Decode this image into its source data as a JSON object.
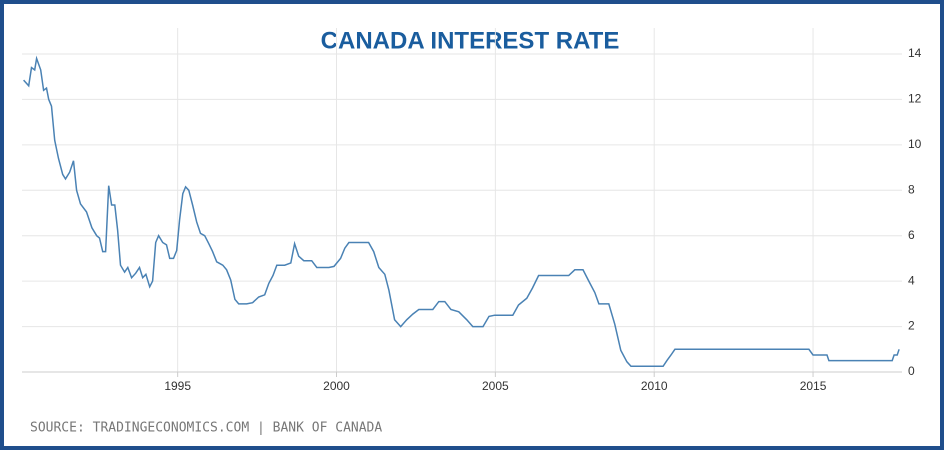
{
  "chart_data": {
    "type": "line",
    "title": "CANADA INTEREST RATE",
    "source": "SOURCE: TRADINGECONOMICS.COM | BANK OF CANADA",
    "x": [
      1990.15,
      1990.31,
      1990.4,
      1990.5,
      1990.56,
      1990.69,
      1990.78,
      1990.87,
      1990.94,
      1991.03,
      1991.13,
      1991.25,
      1991.38,
      1991.47,
      1991.6,
      1991.72,
      1991.82,
      1991.94,
      1992.13,
      1992.3,
      1992.45,
      1992.54,
      1992.64,
      1992.73,
      1992.83,
      1992.92,
      1993.02,
      1993.11,
      1993.2,
      1993.33,
      1993.43,
      1993.55,
      1993.68,
      1993.8,
      1993.9,
      1994.0,
      1994.12,
      1994.21,
      1994.31,
      1994.4,
      1994.53,
      1994.65,
      1994.75,
      1994.87,
      1994.97,
      1995.06,
      1995.16,
      1995.25,
      1995.35,
      1995.47,
      1995.6,
      1995.72,
      1995.85,
      1995.98,
      1996.1,
      1996.23,
      1996.42,
      1996.54,
      1996.67,
      1996.8,
      1996.92,
      1997.17,
      1997.36,
      1997.55,
      1997.74,
      1997.87,
      1998.0,
      1998.12,
      1998.37,
      1998.56,
      1998.68,
      1998.81,
      1998.97,
      1999.22,
      1999.38,
      1999.76,
      1999.92,
      2000.13,
      2000.26,
      2000.39,
      2000.7,
      2001.01,
      2001.17,
      2001.33,
      2001.52,
      2001.65,
      2001.83,
      2002.02,
      2002.21,
      2002.4,
      2002.59,
      2003.03,
      2003.22,
      2003.41,
      2003.6,
      2003.85,
      2004.1,
      2004.29,
      2004.61,
      2004.8,
      2004.98,
      2005.55,
      2005.73,
      2005.99,
      2006.17,
      2006.36,
      2007.31,
      2007.5,
      2007.76,
      2007.94,
      2008.13,
      2008.26,
      2008.57,
      2008.76,
      2008.95,
      2009.14,
      2009.27,
      2010.28,
      2010.4,
      2010.53,
      2010.65,
      2014.87,
      2015.0,
      2015.44,
      2015.5,
      2017.49,
      2017.55,
      2017.65,
      2017.71
    ],
    "values": [
      12.85,
      12.6,
      13.4,
      13.3,
      13.8,
      13.3,
      12.4,
      12.5,
      12.0,
      11.7,
      10.2,
      9.4,
      8.7,
      8.5,
      8.8,
      9.3,
      8.0,
      7.4,
      7.05,
      6.35,
      6.0,
      5.9,
      5.3,
      5.3,
      8.2,
      7.35,
      7.35,
      6.25,
      4.7,
      4.4,
      4.6,
      4.15,
      4.35,
      4.6,
      4.15,
      4.3,
      3.75,
      4.0,
      5.7,
      6.0,
      5.7,
      5.6,
      5.0,
      5.0,
      5.35,
      6.7,
      7.85,
      8.15,
      8.0,
      7.35,
      6.6,
      6.1,
      6.0,
      5.65,
      5.3,
      4.85,
      4.7,
      4.5,
      4.05,
      3.2,
      3.0,
      3.0,
      3.05,
      3.3,
      3.4,
      3.9,
      4.25,
      4.7,
      4.7,
      4.8,
      5.65,
      5.1,
      4.9,
      4.9,
      4.6,
      4.6,
      4.65,
      5.0,
      5.45,
      5.7,
      5.7,
      5.7,
      5.3,
      4.6,
      4.3,
      3.6,
      2.3,
      2.0,
      2.3,
      2.55,
      2.75,
      2.75,
      3.1,
      3.1,
      2.75,
      2.65,
      2.3,
      2.0,
      2.0,
      2.45,
      2.5,
      2.5,
      2.95,
      3.25,
      3.7,
      4.25,
      4.25,
      4.5,
      4.5,
      4.0,
      3.5,
      3.0,
      3.0,
      2.1,
      0.95,
      0.45,
      0.25,
      0.25,
      0.5,
      0.75,
      1.0,
      1.0,
      0.75,
      0.75,
      0.5,
      0.5,
      0.75,
      0.75,
      1.0
    ],
    "color": "#4a82b4",
    "xlim": [
      1990.1,
      2017.8
    ],
    "xticks": [
      1995,
      2000,
      2005,
      2010,
      2015
    ],
    "ylim": [
      0,
      14
    ],
    "yticks": [
      0,
      2,
      4,
      6,
      8,
      10,
      12,
      14
    ],
    "grid": true
  }
}
